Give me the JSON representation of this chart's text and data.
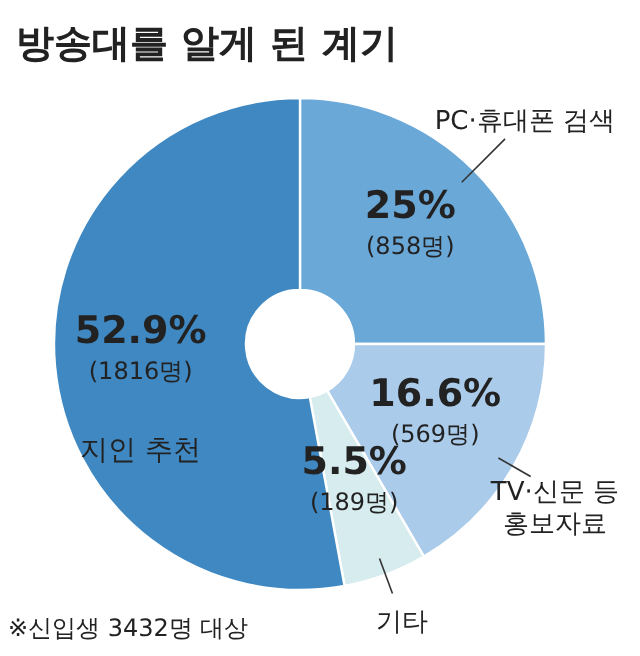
{
  "chart_data": {
    "type": "donut",
    "title": "방송대를 알게 된 계기",
    "categories": [
      "PC·휴대폰 검색",
      "TV·신문 등 홍보자료",
      "기타",
      "지인 추천"
    ],
    "values": [
      25,
      16.6,
      5.5,
      52.9
    ],
    "colors": [
      "#6aa8d8",
      "#aacbea",
      "#d6ecee",
      "#3f88c2"
    ],
    "value_labels": [
      "25%\n(858명)",
      "16.6%\n(569명)",
      "5.5%\n(189명)",
      "52.9%\n(1816명)"
    ],
    "annotations": [
      "※신입생 3432명 대상"
    ]
  }
}
